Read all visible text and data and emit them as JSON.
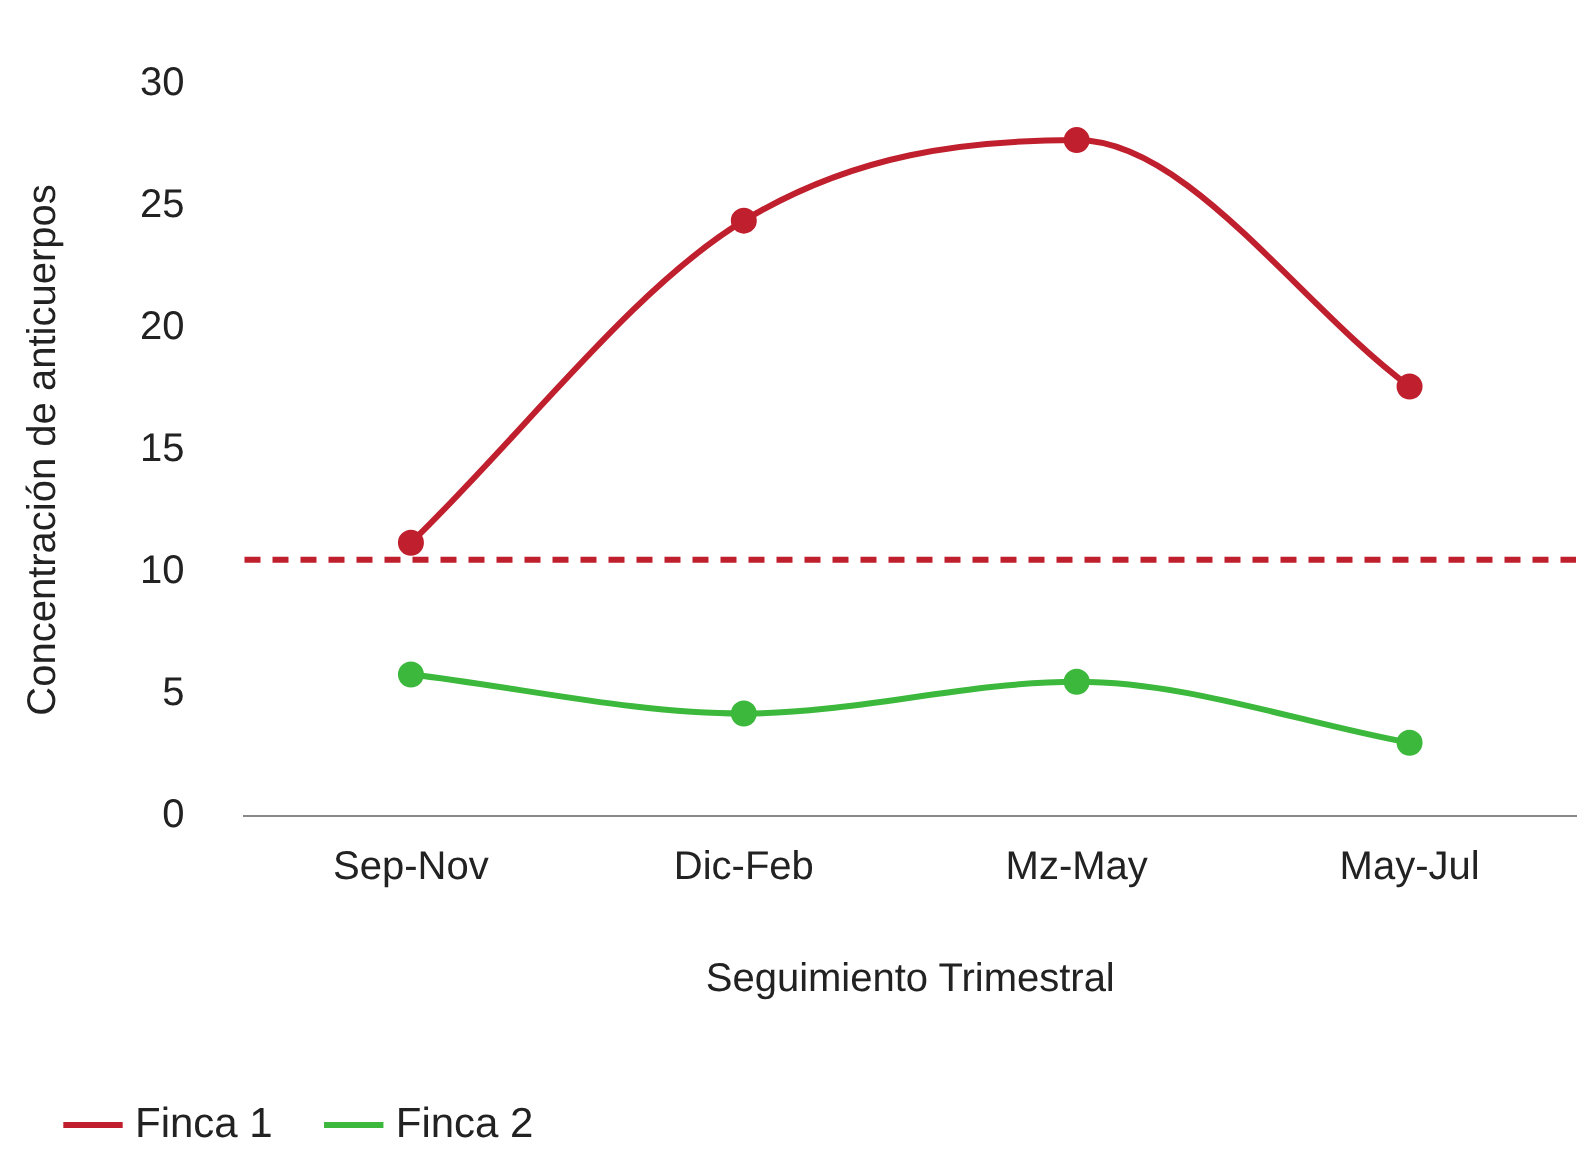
{
  "chart_data": {
    "type": "line",
    "xlabel": "Seguimiento Trimestral",
    "ylabel": "Concentración de anticuerpos",
    "categories": [
      "Sep-Nov",
      "Dic-Feb",
      "Mz-May",
      "May-Jul"
    ],
    "series": [
      {
        "name": "Finca 1",
        "color": "#c0202e",
        "values": [
          11.2,
          24.4,
          27.7,
          17.6
        ]
      },
      {
        "name": "Finca 2",
        "color": "#3cb83c",
        "values": [
          5.8,
          4.2,
          5.5,
          3.0
        ]
      }
    ],
    "ylim": [
      0,
      30
    ],
    "yticks": [
      0,
      5,
      10,
      15,
      20,
      25,
      30
    ],
    "grid": false,
    "legend": "bottom left",
    "marker": "circle",
    "line_style": "solid",
    "ref_lines": [
      {
        "axis": "y",
        "value": 10.5,
        "color": "#c0202e",
        "line_style": "dashed"
      }
    ]
  }
}
